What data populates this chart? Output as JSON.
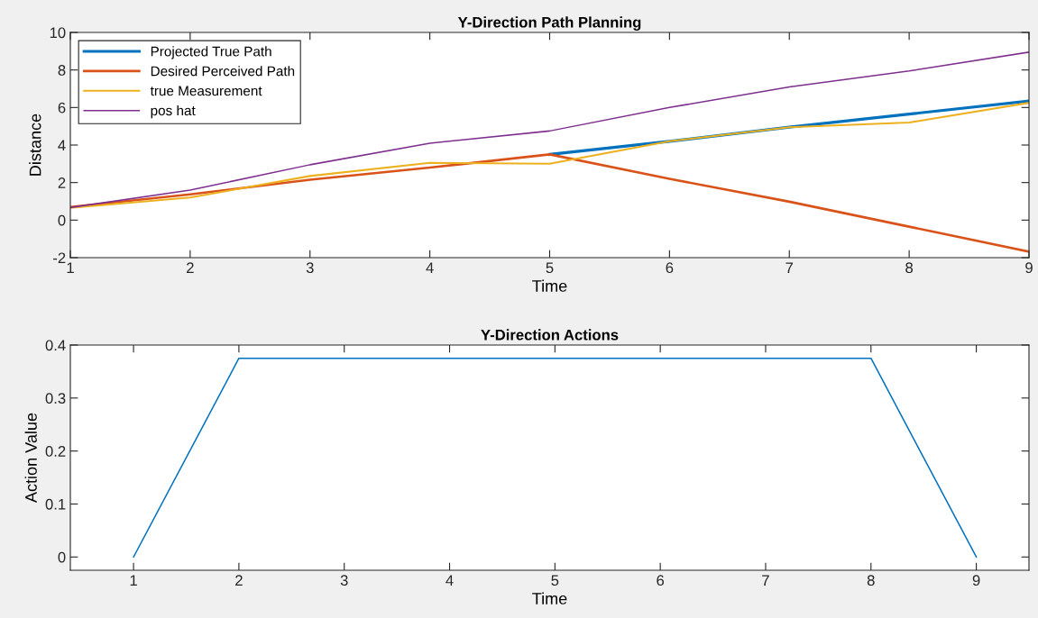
{
  "chart_data": [
    {
      "type": "line",
      "title": "Y-Direction Path Planning",
      "xlabel": "Time",
      "ylabel": "Distance",
      "x": [
        1,
        2,
        3,
        4,
        5,
        6,
        7,
        8,
        9
      ],
      "series": [
        {
          "name": "Projected True Path",
          "color": "#0072bd",
          "values": [
            null,
            null,
            null,
            null,
            3.5,
            4.2,
            4.95,
            5.65,
            6.35
          ]
        },
        {
          "name": "Desired Perceived Path",
          "color": "#d95319",
          "values": [
            0.7,
            1.37,
            2.15,
            2.8,
            3.5,
            2.2,
            0.98,
            -0.35,
            -1.68
          ]
        },
        {
          "name": "true Measurement",
          "color": "#edb120",
          "values": [
            0.65,
            1.2,
            2.35,
            3.05,
            3.0,
            4.2,
            4.95,
            5.2,
            6.25
          ]
        },
        {
          "name": "pos hat",
          "color": "#7e2f8e",
          "values": [
            0.67,
            1.6,
            2.95,
            4.1,
            4.75,
            6.0,
            7.1,
            7.95,
            8.95
          ]
        }
      ],
      "xlim": [
        1,
        9
      ],
      "xticks": [
        1,
        2,
        3,
        4,
        5,
        6,
        7,
        8,
        9
      ],
      "ylim": [
        -2,
        10
      ],
      "yticks": [
        -2,
        0,
        2,
        4,
        6,
        8,
        10
      ],
      "legend": "top left",
      "grid": false
    },
    {
      "type": "line",
      "title": "Y-Direction Actions",
      "xlabel": "Time",
      "ylabel": "Action Value",
      "x": [
        1,
        2,
        3,
        4,
        5,
        6,
        7,
        8,
        9
      ],
      "series": [
        {
          "color": "#0072bd",
          "values": [
            0,
            0.375,
            0.375,
            0.375,
            0.375,
            0.375,
            0.375,
            0.375,
            0
          ]
        }
      ],
      "xlim": [
        0.4,
        9.5
      ],
      "xticks": [
        1,
        2,
        3,
        4,
        5,
        6,
        7,
        8,
        9
      ],
      "ylim": [
        -0.025,
        0.4
      ],
      "yticks": [
        0,
        0.1,
        0.2,
        0.3,
        0.4
      ],
      "legend": false,
      "grid": false
    }
  ]
}
